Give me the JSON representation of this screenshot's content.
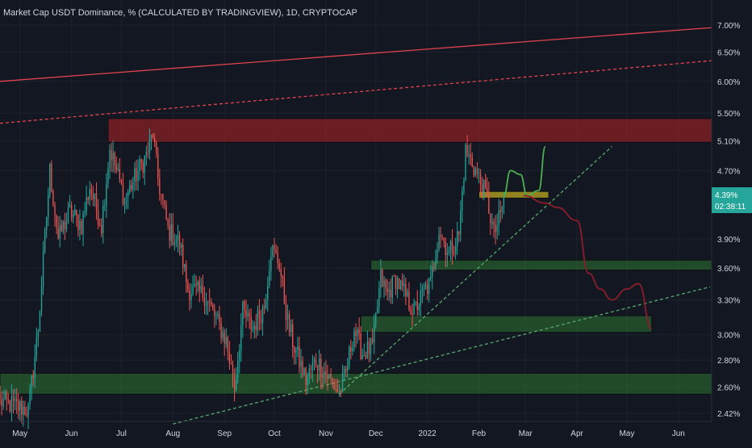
{
  "chart_data": {
    "type": "candlestick",
    "title": "Market Cap USDT Dominance, % (CALCULATED BY TRADINGVIEW), 1D, CRYPTOCAP",
    "y_axis": {
      "scale": "log",
      "unit": "%",
      "ticks": [
        "7.00%",
        "6.50%",
        "6.00%",
        "5.50%",
        "5.10%",
        "4.70%",
        "3.90%",
        "3.60%",
        "3.30%",
        "3.00%",
        "2.80%",
        "2.60%",
        "2.42%"
      ],
      "tick_values": [
        7.0,
        6.5,
        6.0,
        5.5,
        5.1,
        4.7,
        3.9,
        3.6,
        3.3,
        3.0,
        2.8,
        2.6,
        2.42
      ]
    },
    "x_axis": {
      "ticks": [
        "May",
        "Jun",
        "Jul",
        "Aug",
        "Sep",
        "Oct",
        "Nov",
        "Dec",
        "2022",
        "Feb",
        "Mar",
        "Apr",
        "May",
        "Jun"
      ],
      "tick_dates": [
        "2021-05-01",
        "2021-06-01",
        "2021-07-01",
        "2021-08-01",
        "2021-09-01",
        "2021-10-01",
        "2021-11-01",
        "2021-12-01",
        "2022-01-01",
        "2022-02-01",
        "2022-03-01",
        "2022-04-01",
        "2022-05-01",
        "2022-06-01"
      ],
      "range": [
        "2021-04-19",
        "2022-06-21"
      ]
    },
    "current_price": {
      "value": 4.39,
      "label": "4.39%",
      "countdown": "02:38:11"
    },
    "colors": {
      "up": "#26a69a",
      "down": "#ef5350",
      "background": "#131722"
    },
    "anchors": [
      [
        "2021-04-19",
        2.5
      ],
      [
        "2021-04-28",
        2.47
      ],
      [
        "2021-05-06",
        2.44
      ],
      [
        "2021-05-12",
        3.05
      ],
      [
        "2021-05-19",
        4.7
      ],
      [
        "2021-05-24",
        3.9
      ],
      [
        "2021-05-31",
        4.2
      ],
      [
        "2021-06-07",
        4.05
      ],
      [
        "2021-06-12",
        4.5
      ],
      [
        "2021-06-19",
        4.05
      ],
      [
        "2021-06-24",
        5.0
      ],
      [
        "2021-06-28",
        4.7
      ],
      [
        "2021-07-03",
        4.35
      ],
      [
        "2021-07-10",
        4.65
      ],
      [
        "2021-07-16",
        4.9
      ],
      [
        "2021-07-20",
        5.2
      ],
      [
        "2021-07-23",
        4.6
      ],
      [
        "2021-07-29",
        4.0
      ],
      [
        "2021-08-05",
        3.85
      ],
      [
        "2021-08-10",
        3.4
      ],
      [
        "2021-08-20",
        3.35
      ],
      [
        "2021-08-28",
        3.1
      ],
      [
        "2021-09-02",
        2.95
      ],
      [
        "2021-09-07",
        2.6
      ],
      [
        "2021-09-12",
        3.2
      ],
      [
        "2021-09-18",
        3.05
      ],
      [
        "2021-09-25",
        3.25
      ],
      [
        "2021-09-29",
        3.8
      ],
      [
        "2021-10-04",
        3.65
      ],
      [
        "2021-10-09",
        3.1
      ],
      [
        "2021-10-13",
        2.9
      ],
      [
        "2021-10-20",
        2.65
      ],
      [
        "2021-10-26",
        2.8
      ],
      [
        "2021-11-02",
        2.68
      ],
      [
        "2021-11-09",
        2.56
      ],
      [
        "2021-11-13",
        2.7
      ],
      [
        "2021-11-18",
        3.05
      ],
      [
        "2021-11-23",
        2.85
      ],
      [
        "2021-11-29",
        2.9
      ],
      [
        "2021-12-04",
        3.5
      ],
      [
        "2021-12-08",
        3.35
      ],
      [
        "2021-12-13",
        3.5
      ],
      [
        "2021-12-20",
        3.3
      ],
      [
        "2021-12-24",
        3.2
      ],
      [
        "2021-12-31",
        3.4
      ],
      [
        "2022-01-03",
        3.45
      ],
      [
        "2022-01-08",
        4.0
      ],
      [
        "2022-01-14",
        3.75
      ],
      [
        "2022-01-20",
        3.95
      ],
      [
        "2022-01-24",
        4.95
      ],
      [
        "2022-01-28",
        4.8
      ],
      [
        "2022-02-01",
        4.6
      ],
      [
        "2022-02-06",
        4.35
      ],
      [
        "2022-02-10",
        3.95
      ],
      [
        "2022-02-14",
        4.15
      ],
      [
        "2022-02-16",
        4.39
      ]
    ],
    "zones": [
      {
        "from": "2021-06-23",
        "to": "2022-06-21",
        "price_low": 5.08,
        "price_high": 5.42,
        "color": "red"
      },
      {
        "from": "2022-02-01",
        "to": "2022-03-15",
        "price_low": 4.36,
        "price_high": 4.44,
        "color": "yellow"
      },
      {
        "from": "2021-11-28",
        "to": "2022-06-21",
        "price_low": 3.58,
        "price_high": 3.68,
        "color": "green"
      },
      {
        "from": "2021-11-22",
        "to": "2022-05-16",
        "price_low": 3.02,
        "price_high": 3.16,
        "color": "green"
      },
      {
        "from": "2021-04-19",
        "to": "2022-06-21",
        "price_low": 2.55,
        "price_high": 2.7,
        "color": "green"
      }
    ],
    "trendlines": [
      {
        "from": [
          "2021-04-19",
          6.0
        ],
        "to": [
          "2022-06-21",
          6.95
        ],
        "style": "solid",
        "color": "red"
      },
      {
        "from": [
          "2021-04-19",
          5.35
        ],
        "to": [
          "2022-06-21",
          6.35
        ],
        "style": "dashed",
        "color": "red"
      },
      {
        "from": [
          "2021-11-09",
          2.55
        ],
        "to": [
          "2022-04-22",
          5.02
        ],
        "style": "dashed",
        "color": "green"
      },
      {
        "from": [
          "2021-08-01",
          2.35
        ],
        "to": [
          "2022-06-20",
          3.42
        ],
        "style": "dashed",
        "color": "green"
      }
    ],
    "projections": [
      {
        "color": "green",
        "path": [
          [
            "2022-02-16",
            4.39
          ],
          [
            "2022-02-20",
            4.7
          ],
          [
            "2022-02-26",
            4.65
          ],
          [
            "2022-03-02",
            4.39
          ],
          [
            "2022-03-09",
            4.45
          ],
          [
            "2022-03-13",
            5.02
          ]
        ]
      },
      {
        "color": "red",
        "path": [
          [
            "2022-02-28",
            4.39
          ],
          [
            "2022-03-13",
            4.3
          ],
          [
            "2022-03-20",
            4.25
          ],
          [
            "2022-04-01",
            4.1
          ],
          [
            "2022-04-08",
            3.55
          ],
          [
            "2022-04-15",
            3.4
          ],
          [
            "2022-04-22",
            3.3
          ],
          [
            "2022-05-01",
            3.4
          ],
          [
            "2022-05-08",
            3.45
          ],
          [
            "2022-05-16",
            3.05
          ]
        ]
      }
    ]
  }
}
